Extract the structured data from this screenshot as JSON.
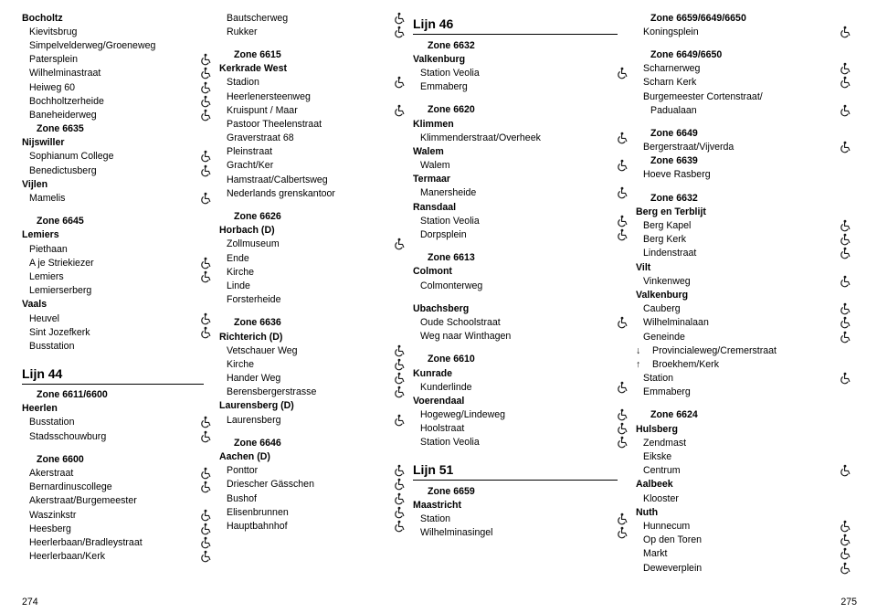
{
  "icon_name": "wheelchair",
  "page_left": "274",
  "page_right": "275",
  "columns": [
    [
      {
        "t": "Bocholtz",
        "b": 1
      },
      {
        "t": "Kievitsbrug",
        "i": 1
      },
      {
        "t": "Simpelvelderweg/Groeneweg",
        "i": 1
      },
      {
        "t": "Patersplein",
        "i": 1,
        "w": 1
      },
      {
        "t": "Wilhelminastraat",
        "i": 1,
        "w": 1
      },
      {
        "t": "Heiweg 60",
        "i": 1,
        "w": 1
      },
      {
        "t": "Bochholtzerheide",
        "i": 1,
        "w": 1
      },
      {
        "t": "Baneheiderweg",
        "i": 1,
        "w": 1
      },
      {
        "t": "Zone 6635",
        "i": 2,
        "b": 1
      },
      {
        "t": "Nijswiller",
        "b": 1
      },
      {
        "t": "Sophianum College",
        "i": 1,
        "w": 1
      },
      {
        "t": "Benedictusberg",
        "i": 1,
        "w": 1
      },
      {
        "t": "Vijlen",
        "b": 1
      },
      {
        "t": "Mamelis",
        "i": 1,
        "w": 1
      },
      {
        "sp": 10
      },
      {
        "t": "Zone 6645",
        "i": 2,
        "b": 1
      },
      {
        "t": "Lemiers",
        "b": 1
      },
      {
        "t": "Piethaan",
        "i": 1
      },
      {
        "t": "A je Striekiezer",
        "i": 1,
        "w": 1
      },
      {
        "t": "Lemiers",
        "i": 1,
        "w": 1
      },
      {
        "t": "Lemierserberg",
        "i": 1
      },
      {
        "t": "Vaals",
        "b": 1
      },
      {
        "t": "Heuvel",
        "i": 1,
        "w": 1
      },
      {
        "t": "Sint Jozefkerk",
        "i": 1,
        "w": 1
      },
      {
        "t": "Busstation",
        "i": 1
      },
      {
        "sp": 8
      },
      {
        "title": "Lijn 44"
      },
      {
        "rule": 1
      },
      {
        "t": "Zone 6611/6600",
        "i": 2,
        "b": 1
      },
      {
        "t": "Heerlen",
        "b": 1
      },
      {
        "t": "Busstation",
        "i": 1,
        "w": 1
      },
      {
        "t": "Stadsschouwburg",
        "i": 1,
        "w": 1
      },
      {
        "sp": 10
      },
      {
        "t": "Zone 6600",
        "i": 2,
        "b": 1
      },
      {
        "t": "Akerstraat",
        "i": 1,
        "w": 1
      },
      {
        "t": "Bernardinuscollege",
        "i": 1,
        "w": 1
      },
      {
        "t": "Akerstraat/Burgemeester",
        "i": 1
      },
      {
        "t": "Waszinkstr",
        "i": 1,
        "w": 1
      },
      {
        "t": "Heesberg",
        "i": 1,
        "w": 1
      },
      {
        "t": "Heerlerbaan/Bradleystraat",
        "i": 1,
        "w": 1
      },
      {
        "t": "Heerlerbaan/Kerk",
        "i": 1,
        "w": 1
      }
    ],
    [
      {
        "t": "Bautscherweg",
        "i": 1,
        "w": 1
      },
      {
        "t": "Rukker",
        "i": 1,
        "w": 1
      },
      {
        "sp": 10
      },
      {
        "t": "Zone 6615",
        "i": 2,
        "b": 1
      },
      {
        "t": "Kerkrade West",
        "b": 1
      },
      {
        "t": "Stadion",
        "i": 1,
        "w": 1
      },
      {
        "t": "Heerlenersteenweg",
        "i": 1
      },
      {
        "t": "Kruispunt / Maar",
        "i": 1,
        "w": 1
      },
      {
        "t": "Pastoor Theelenstraat",
        "i": 1
      },
      {
        "t": "Graverstraat 68",
        "i": 1
      },
      {
        "t": "Pleinstraat",
        "i": 1
      },
      {
        "t": "Gracht/Ker",
        "i": 1
      },
      {
        "t": "Hamstraat/Calbertsweg",
        "i": 1
      },
      {
        "t": "Nederlands grenskantoor",
        "i": 1
      },
      {
        "sp": 10
      },
      {
        "t": "Zone 6626",
        "i": 2,
        "b": 1
      },
      {
        "t": "Horbach (D)",
        "b": 1
      },
      {
        "t": "Zollmuseum",
        "i": 1,
        "w": 1
      },
      {
        "t": "Ende",
        "i": 1
      },
      {
        "t": "Kirche",
        "i": 1
      },
      {
        "t": "Linde",
        "i": 1
      },
      {
        "t": "Forsterheide",
        "i": 1
      },
      {
        "sp": 10
      },
      {
        "t": "Zone 6636",
        "i": 2,
        "b": 1
      },
      {
        "t": "Richterich (D)",
        "b": 1
      },
      {
        "t": "Vetschauer Weg",
        "i": 1,
        "w": 1
      },
      {
        "t": "Kirche",
        "i": 1,
        "w": 1
      },
      {
        "t": "Hander Weg",
        "i": 1,
        "w": 1
      },
      {
        "t": "Berensbergerstrasse",
        "i": 1,
        "w": 1
      },
      {
        "t": "Laurensberg (D)",
        "b": 1
      },
      {
        "t": "Laurensberg",
        "i": 1,
        "w": 1
      },
      {
        "sp": 10
      },
      {
        "t": "Zone 6646",
        "i": 2,
        "b": 1
      },
      {
        "t": "Aachen (D)",
        "b": 1
      },
      {
        "t": "Ponttor",
        "i": 1,
        "w": 1
      },
      {
        "t": "Driescher Gässchen",
        "i": 1,
        "w": 1
      },
      {
        "t": "Bushof",
        "i": 1,
        "w": 1
      },
      {
        "t": "Elisenbrunnen",
        "i": 1,
        "w": 1
      },
      {
        "t": "Hauptbahnhof",
        "i": 1,
        "w": 1
      }
    ],
    [
      {
        "title": "Lijn 46"
      },
      {
        "rule": 1
      },
      {
        "t": "Zone 6632",
        "i": 2,
        "b": 1
      },
      {
        "t": "Valkenburg",
        "b": 1
      },
      {
        "t": "Station Veolia",
        "i": 1,
        "w": 1
      },
      {
        "t": "Emmaberg",
        "i": 1
      },
      {
        "sp": 10
      },
      {
        "t": "Zone 6620",
        "i": 2,
        "b": 1
      },
      {
        "t": "Klimmen",
        "b": 1
      },
      {
        "t": "Klimmenderstraat/Overheek",
        "i": 1,
        "w": 1
      },
      {
        "t": "Walem",
        "b": 1
      },
      {
        "t": "Walem",
        "i": 1,
        "w": 1
      },
      {
        "t": "Termaar",
        "b": 1
      },
      {
        "t": "Manersheide",
        "i": 1,
        "w": 1
      },
      {
        "t": "Ransdaal",
        "b": 1
      },
      {
        "t": "Station Veolia",
        "i": 1,
        "w": 1
      },
      {
        "t": "Dorpsplein",
        "i": 1,
        "w": 1
      },
      {
        "sp": 10
      },
      {
        "t": "Zone 6613",
        "i": 2,
        "b": 1
      },
      {
        "t": "Colmont",
        "b": 1
      },
      {
        "t": "Colmonterweg",
        "i": 1
      },
      {
        "sp": 10
      },
      {
        "t": "Ubachsberg",
        "b": 1
      },
      {
        "t": "Oude Schoolstraat",
        "i": 1,
        "w": 1
      },
      {
        "t": "Weg naar Winthagen",
        "i": 1
      },
      {
        "sp": 10
      },
      {
        "t": "Zone 6610",
        "i": 2,
        "b": 1
      },
      {
        "t": "Kunrade",
        "b": 1
      },
      {
        "t": "Kunderlinde",
        "i": 1,
        "w": 1
      },
      {
        "t": "Voerendaal",
        "b": 1
      },
      {
        "t": "Hogeweg/Lindeweg",
        "i": 1,
        "w": 1
      },
      {
        "t": "Hoolstraat",
        "i": 1,
        "w": 1
      },
      {
        "t": "Station Veolia",
        "i": 1,
        "w": 1
      },
      {
        "sp": 8
      },
      {
        "title": "Lijn 51"
      },
      {
        "rule": 1
      },
      {
        "t": "Zone 6659",
        "i": 2,
        "b": 1
      },
      {
        "t": "Maastricht",
        "b": 1
      },
      {
        "t": "Station",
        "i": 1,
        "w": 1
      },
      {
        "t": "Wilhelminasingel",
        "i": 1,
        "w": 1
      }
    ],
    [
      {
        "t": "Zone 6659/6649/6650",
        "i": 2,
        "b": 1
      },
      {
        "t": "Koningsplein",
        "i": 1,
        "w": 1
      },
      {
        "sp": 10
      },
      {
        "t": "Zone 6649/6650",
        "i": 2,
        "b": 1
      },
      {
        "t": "Scharnerweg",
        "i": 1,
        "w": 1
      },
      {
        "t": "Scharn Kerk",
        "i": 1,
        "w": 1
      },
      {
        "t": "Burgemeester Cortenstraat/",
        "i": 1
      },
      {
        "t": "Padualaan",
        "i": 2,
        "w": 1
      },
      {
        "sp": 10
      },
      {
        "t": "Zone 6649",
        "i": 2,
        "b": 1
      },
      {
        "t": "Bergerstraat/Vijverda",
        "i": 1,
        "w": 1
      },
      {
        "t": "Zone 6639",
        "i": 2,
        "b": 1
      },
      {
        "t": "Hoeve Rasberg",
        "i": 1
      },
      {
        "sp": 10
      },
      {
        "t": "Zone 6632",
        "i": 2,
        "b": 1
      },
      {
        "t": "Berg en Terblijt",
        "b": 1
      },
      {
        "t": "Berg Kapel",
        "i": 1,
        "w": 1
      },
      {
        "t": "Berg Kerk",
        "i": 1,
        "w": 1
      },
      {
        "t": "Lindenstraat",
        "i": 1,
        "w": 1
      },
      {
        "t": "Vilt",
        "b": 1
      },
      {
        "t": "Vinkenweg",
        "i": 1,
        "w": 1
      },
      {
        "t": "Valkenburg",
        "b": 1
      },
      {
        "t": "Cauberg",
        "i": 1,
        "w": 1
      },
      {
        "t": "Wilhelminalaan",
        "i": 1,
        "w": 1
      },
      {
        "t": "Geneinde",
        "i": 1,
        "w": 1
      },
      {
        "t": "Provincialeweg/Cremerstraat",
        "i": 1,
        "arrow": "↓"
      },
      {
        "t": "Broekhem/Kerk",
        "i": 1,
        "arrow": "↑"
      },
      {
        "t": "Station",
        "i": 1,
        "w": 1
      },
      {
        "t": "Emmaberg",
        "i": 1
      },
      {
        "sp": 10
      },
      {
        "t": "Zone 6624",
        "i": 2,
        "b": 1
      },
      {
        "t": "Hulsberg",
        "b": 1
      },
      {
        "t": "Zendmast",
        "i": 1
      },
      {
        "t": "Eikske",
        "i": 1
      },
      {
        "t": "Centrum",
        "i": 1,
        "w": 1
      },
      {
        "t": "Aalbeek",
        "b": 1
      },
      {
        "t": "Klooster",
        "i": 1
      },
      {
        "t": "Nuth",
        "b": 1
      },
      {
        "t": "Hunnecum",
        "i": 1,
        "w": 1
      },
      {
        "t": "Op den Toren",
        "i": 1,
        "w": 1
      },
      {
        "t": "Markt",
        "i": 1,
        "w": 1
      },
      {
        "t": "Deweverplein",
        "i": 1,
        "w": 1
      }
    ]
  ]
}
